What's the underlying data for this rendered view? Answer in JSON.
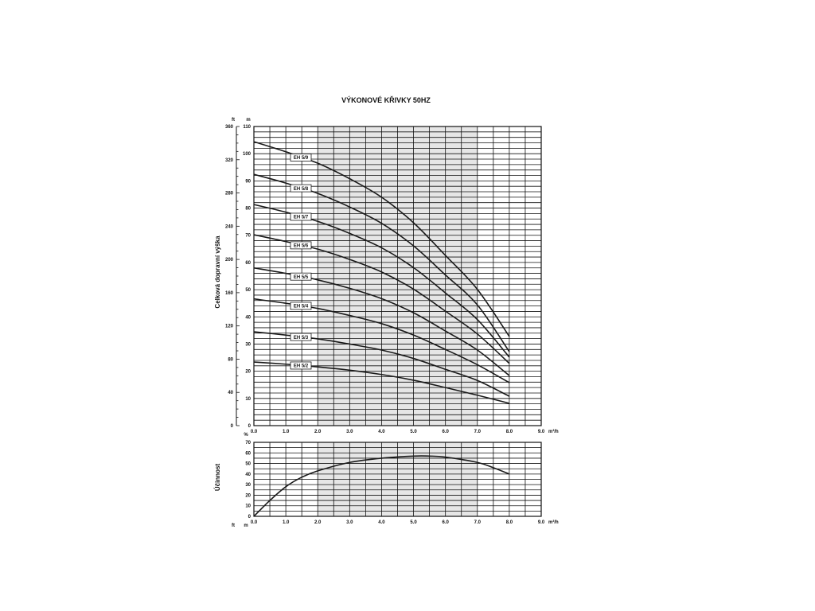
{
  "title": "VÝKONOVÉ KŘIVKY 50HZ",
  "chart_data": [
    {
      "type": "line",
      "title": "VÝKONOVÉ KŘIVKY 50HZ",
      "xlabel": "m³/h",
      "ylabel": "Celková dopravní výška",
      "y_unit_left": "ft",
      "y_unit_right": "m",
      "xlim": [
        0,
        9
      ],
      "ylim": [
        0,
        110
      ],
      "ylim_ft": [
        0,
        360
      ],
      "x_ticks": [
        "0.0",
        "1.0",
        "2.0",
        "3.0",
        "4.0",
        "5.0",
        "6.0",
        "7.0",
        "8.0",
        "9.0"
      ],
      "y_ticks_m": [
        "0",
        "10",
        "20",
        "30",
        "40",
        "50",
        "60",
        "70",
        "80",
        "90",
        "100",
        "110"
      ],
      "y_ticks_ft": [
        "0",
        "40",
        "80",
        "120",
        "160",
        "200",
        "240",
        "280",
        "320",
        "360"
      ],
      "grid": true,
      "shaded_x_range": [
        2,
        7
      ],
      "x": [
        0,
        1,
        2,
        3,
        4,
        5,
        6,
        7,
        8
      ],
      "series": [
        {
          "name": "EH 5/9",
          "values": [
            104.4,
            100.7,
            96.5,
            90.8,
            84.0,
            74.6,
            62.6,
            50.1,
            32.8
          ]
        },
        {
          "name": "EH 5/8",
          "values": [
            92.4,
            89.2,
            85.4,
            80.4,
            74.4,
            66.1,
            55.4,
            44.4,
            27.2
          ]
        },
        {
          "name": "EH 5/7",
          "values": [
            81.3,
            78.5,
            75.1,
            70.7,
            65.4,
            58.1,
            48.8,
            39.0,
            25.2
          ]
        },
        {
          "name": "EH 5/6",
          "values": [
            70.2,
            67.7,
            64.9,
            61.1,
            56.5,
            50.2,
            42.1,
            33.7,
            22.9
          ]
        },
        {
          "name": "EH 5/5",
          "values": [
            58.0,
            56.0,
            53.6,
            50.5,
            46.7,
            41.5,
            34.8,
            27.8,
            18.4
          ]
        },
        {
          "name": "EH 5/4",
          "values": [
            46.6,
            45.0,
            43.1,
            40.5,
            37.5,
            33.3,
            28.0,
            22.4,
            15.8
          ]
        },
        {
          "name": "EH 5/3",
          "values": [
            34.5,
            33.3,
            31.9,
            30.0,
            27.8,
            24.7,
            20.7,
            16.6,
            10.8
          ]
        },
        {
          "name": "EH 5/2",
          "values": [
            23.4,
            22.6,
            21.6,
            20.4,
            18.8,
            16.7,
            14.0,
            11.2,
            8.2
          ]
        }
      ]
    },
    {
      "type": "line",
      "xlabel": "m³/h",
      "ylabel": "Účinnost",
      "y_unit": "%",
      "bottom_units": [
        "ft",
        "m"
      ],
      "xlim": [
        0,
        9
      ],
      "ylim": [
        0,
        70
      ],
      "x_ticks": [
        "0.0",
        "1.0",
        "2.0",
        "3.0",
        "4.0",
        "5.0",
        "6.0",
        "7.0",
        "8.0",
        "9.0"
      ],
      "y_ticks": [
        "0",
        "10",
        "20",
        "30",
        "40",
        "50",
        "60",
        "70"
      ],
      "grid": true,
      "shaded_x_range": [
        2,
        7
      ],
      "x": [
        0,
        0.5,
        1,
        1.5,
        2,
        3,
        4,
        5,
        5.5,
        6,
        7,
        7.5,
        8
      ],
      "values": [
        0,
        15,
        28,
        37,
        43,
        51,
        55,
        57,
        57,
        56,
        51,
        46,
        40
      ]
    }
  ],
  "colors": {
    "line": "#1a1a1a",
    "grid": "#111111",
    "shade": "#e6e6e6"
  }
}
